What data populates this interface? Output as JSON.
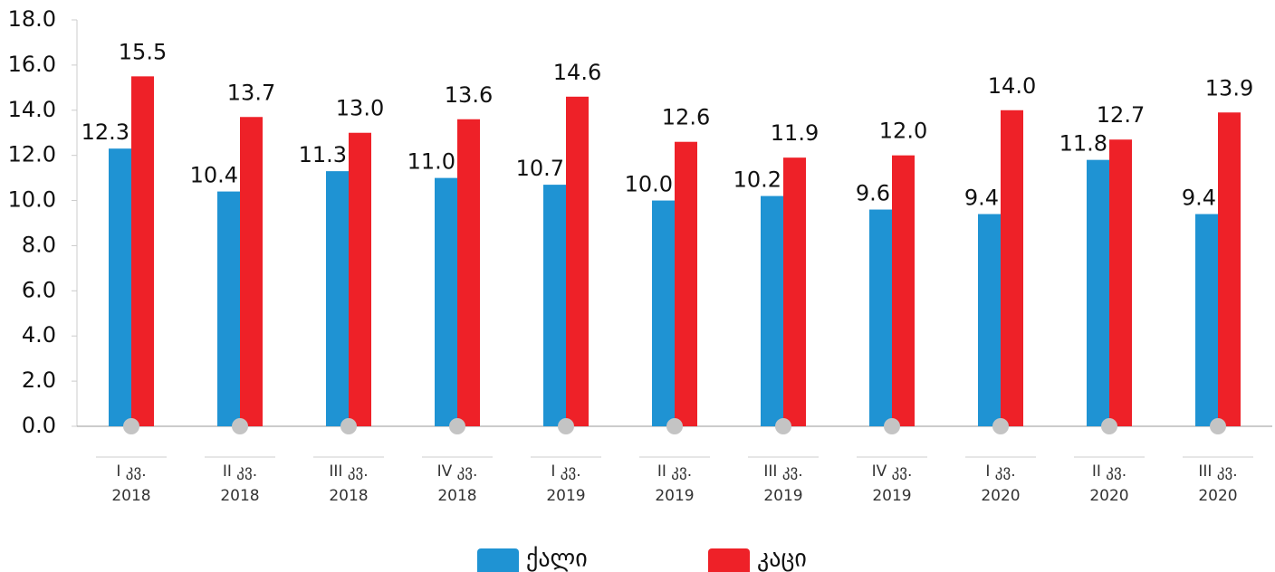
{
  "chart_data": {
    "type": "bar",
    "categories": [
      "I კვ. 2018",
      "II კვ. 2018",
      "III კვ. 2018",
      "IV კვ. 2018",
      "I კვ. 2019",
      "II კვ. 2019",
      "III კვ. 2019",
      "IV კვ. 2019",
      "I კვ. 2020",
      "II კვ. 2020",
      "III კვ. 2020"
    ],
    "series": [
      {
        "name": "ქალი",
        "color": "#1f93d3",
        "values": [
          12.3,
          10.4,
          11.3,
          11.0,
          10.7,
          10.0,
          10.2,
          9.6,
          9.4,
          11.8,
          9.4
        ],
        "value_labels": [
          "12.3",
          "10.4",
          "11.3",
          "11.0",
          "10.7",
          "10.0",
          "10.2",
          "9.6",
          "9.4",
          "11.8",
          "9.4"
        ]
      },
      {
        "name": "კაცი",
        "color": "#ee2128",
        "values": [
          15.5,
          13.7,
          13.0,
          13.6,
          14.6,
          12.6,
          11.9,
          12.0,
          14.0,
          12.7,
          13.9
        ],
        "value_labels": [
          "15.5",
          "13.7",
          "13.0",
          "13.6",
          "14.6",
          "12.6",
          "11.9",
          "12.0",
          "14.0",
          "12.7",
          "13.9"
        ]
      }
    ],
    "ylim": [
      0,
      18
    ],
    "yticks": [
      {
        "value": 0,
        "label": "0.0"
      },
      {
        "value": 2,
        "label": "2.0"
      },
      {
        "value": 4,
        "label": "4.0"
      },
      {
        "value": 6,
        "label": "6.0"
      },
      {
        "value": 8,
        "label": "8.0"
      },
      {
        "value": 10,
        "label": "10.0"
      },
      {
        "value": 12,
        "label": "12.0"
      },
      {
        "value": 14,
        "label": "14.0"
      },
      {
        "value": 16,
        "label": "16.0"
      },
      {
        "value": 18,
        "label": "18.0"
      }
    ],
    "legend": "bottom"
  }
}
